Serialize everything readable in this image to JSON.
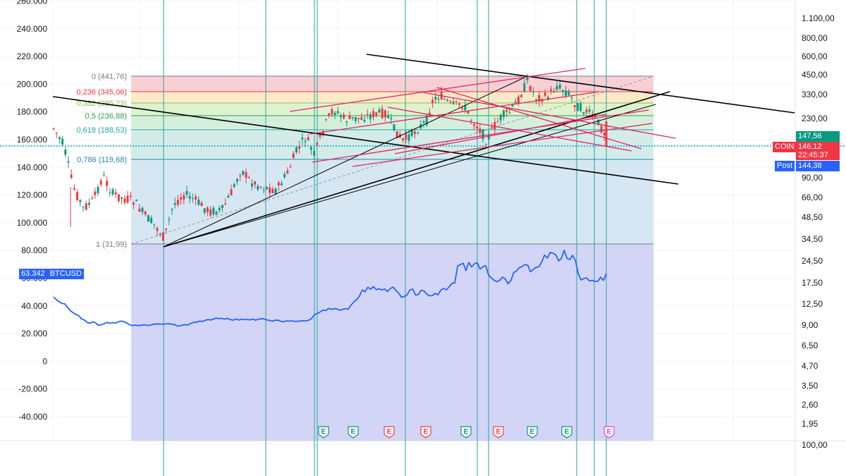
{
  "left_axis": {
    "ticks": [
      "260.000",
      "240.000",
      "220.000",
      "200.000",
      "180.000",
      "160.000",
      "140.000",
      "120.000",
      "100.000",
      "80.000",
      "60.000",
      "40.000",
      "20.000",
      "0",
      "-20.000",
      "-40.000"
    ]
  },
  "right_axis": {
    "ticks": [
      "1.100,00",
      "800,00",
      "600,00",
      "450,00",
      "330,00",
      "230,00",
      "90,00",
      "66,00",
      "48,50",
      "34,50",
      "24,50",
      "17,50",
      "12,50",
      "9,00",
      "6,50",
      "4,70",
      "3,50",
      "2,60",
      "1,95",
      "100,00"
    ]
  },
  "fib_levels": [
    {
      "label": "0 (441,76)",
      "color": "#787b86"
    },
    {
      "label": "0,236 (345,06)",
      "color": "#f23645"
    },
    {
      "label": "0,382 (285,23)",
      "color": "#8bc34a"
    },
    {
      "label": "0,5 (236,88)",
      "color": "#2f9d51"
    },
    {
      "label": "0,618 (188,53)",
      "color": "#22ab94"
    },
    {
      "label": "0,786 (119,68)",
      "color": "#1e88a8"
    },
    {
      "label": "1 (31,99)",
      "color": "#787b86"
    }
  ],
  "tags": {
    "btc_value": "63.342",
    "btc_symbol": "BTCUSD",
    "coin_symbol": "COIN",
    "coin_price": "146,12",
    "countdown": "22:45:37",
    "post_label": "Post",
    "post_price": "144,38",
    "right_price": "147,56"
  },
  "earnings_markers": [
    {
      "label": "E",
      "color": "#089981"
    },
    {
      "label": "E",
      "color": "#089981"
    },
    {
      "label": "E",
      "color": "#f23645"
    },
    {
      "label": "E",
      "color": "#f23645"
    },
    {
      "label": "E",
      "color": "#089981"
    },
    {
      "label": "E",
      "color": "#f23645"
    },
    {
      "label": "E",
      "color": "#089981"
    },
    {
      "label": "E",
      "color": "#089981"
    },
    {
      "label": "E",
      "color": "#e040fb"
    }
  ],
  "colors": {
    "up": "#089981",
    "down": "#f23645",
    "btc_line": "#2962ff",
    "trend_black": "#000000",
    "channel_pink": "#e91e63",
    "vertical_teal": "#26a69a"
  },
  "chart_data": {
    "type": "line",
    "series": [
      {
        "name": "BTCUSD",
        "y": [
          46500,
          44500,
          43000,
          41800,
          41500,
          39000,
          36500,
          35000,
          33800,
          33000,
          30500,
          29800,
          28000,
          27500,
          28500,
          27800,
          26000,
          26500,
          27000,
          28200,
          27500,
          28000,
          27600,
          28500,
          29000,
          28700,
          27800,
          26500,
          25800,
          26200,
          25800,
          26000,
          26300,
          26200,
          25800,
          26500,
          26800,
          27000,
          26900,
          26700,
          27000,
          27200,
          26800,
          26600,
          25500,
          25600,
          26200,
          26400,
          26300,
          27500,
          28100,
          28300,
          29000,
          28800,
          29500,
          30200,
          29800,
          30500,
          31200,
          30800,
          31000,
          30500,
          31000,
          30200,
          29700,
          30600,
          29800,
          30500,
          30000,
          30300,
          29900,
          30500,
          29700,
          30300,
          30800,
          30600,
          29900,
          29500,
          29000,
          29600,
          29700,
          28900,
          28600,
          29200,
          29000,
          29200,
          28800,
          28900,
          29100,
          29300,
          29200,
          29700,
          31000,
          33800,
          34500,
          35600,
          37000,
          36600,
          38200,
          37500,
          38000,
          37800,
          36800,
          37500,
          38000,
          37600,
          40500,
          42800,
          44500,
          47000,
          51500,
          50200,
          53500,
          52000,
          54000,
          51700,
          52400,
          51500,
          52200,
          50400,
          52500,
          53500,
          51300,
          49200,
          46200,
          46800,
          48000,
          51500,
          52200,
          47800,
          48200,
          51300,
          50800,
          48500,
          47300,
          47500,
          49000,
          48000,
          51400,
          52600,
          51600,
          53800,
          56300,
          56600,
          68700,
          69800,
          70800,
          65500,
          71400,
          68100,
          70500,
          71300,
          66500,
          68200,
          69100,
          62500,
          60200,
          58600,
          57400,
          58400,
          60800,
          59500,
          56000,
          58300,
          64100,
          65200,
          67600,
          68400,
          69800,
          69400,
          64600,
          66400,
          67900,
          68300,
          71800,
          76700,
          74500,
          78600,
          78100,
          76800,
          72500,
          74300,
          80100,
          74300,
          73500,
          76500,
          72600,
          63200,
          58700,
          59800,
          60200,
          58000,
          58400,
          57700,
          57800,
          60700,
          58400,
          63342
        ]
      }
    ],
    "candles_note": "",
    "fib_retracement": [
      441.76,
      345.06,
      285.23,
      236.88,
      188.53,
      119.68,
      31.99
    ],
    "coin_last_price": 146.12,
    "coin_post_price": 144.38,
    "btc_last": 63342,
    "left_ylim": [
      -55000,
      260000
    ],
    "right_axis_scale": "log",
    "grid": true
  }
}
